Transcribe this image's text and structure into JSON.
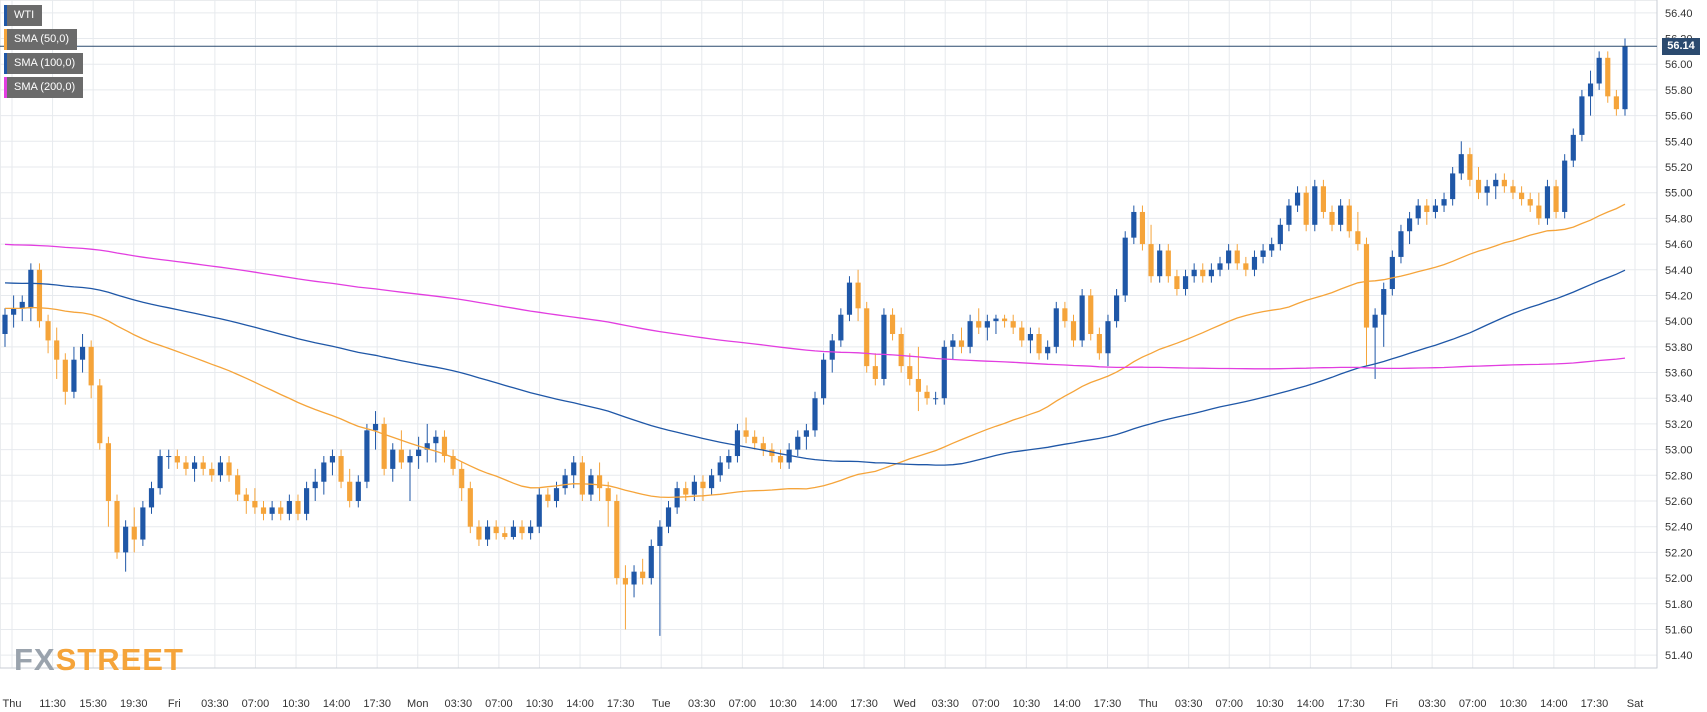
{
  "legend": [
    {
      "label": "WTI",
      "color": "#1f57a7"
    },
    {
      "label": "SMA (50,0)",
      "color": "#f5a43a"
    },
    {
      "label": "SMA (100,0)",
      "color": "#1f57a7"
    },
    {
      "label": "SMA (200,0)",
      "color": "#e23ee0"
    }
  ],
  "logo": {
    "fx": "FX",
    "street": "STREET"
  },
  "price_tag": "56.14",
  "colors": {
    "up": "#1f57a7",
    "down": "#f5a43a",
    "sma50": "#f5a43a",
    "sma100": "#1f57a7",
    "sma200": "#e23ee0",
    "grid": "#e7eaee",
    "last_line": "#2b4a6f"
  },
  "chart_data": {
    "type": "candlestick",
    "title": "",
    "symbol": "WTI",
    "ylim": [
      51.3,
      56.5
    ],
    "y_ticks": [
      "51.40",
      "51.60",
      "51.80",
      "52.00",
      "52.20",
      "52.40",
      "52.60",
      "52.80",
      "53.00",
      "53.20",
      "53.40",
      "53.60",
      "53.80",
      "54.00",
      "54.20",
      "54.40",
      "54.60",
      "54.80",
      "55.00",
      "55.20",
      "55.40",
      "55.60",
      "55.80",
      "56.00",
      "56.20",
      "56.40"
    ],
    "x_ticks": [
      "Thu",
      "11:30",
      "15:30",
      "19:30",
      "Fri",
      "03:30",
      "07:00",
      "10:30",
      "14:00",
      "17:30",
      "Mon",
      "03:30",
      "07:00",
      "10:30",
      "14:00",
      "17:30",
      "Tue",
      "03:30",
      "07:00",
      "10:30",
      "14:00",
      "17:30",
      "Wed",
      "03:30",
      "07:00",
      "10:30",
      "14:00",
      "17:30",
      "Thu",
      "03:30",
      "07:00",
      "10:30",
      "14:00",
      "17:30",
      "Fri",
      "03:30",
      "07:00",
      "10:30",
      "14:00",
      "17:30",
      "Sat"
    ],
    "last_price": 56.14,
    "ohlc": [
      [
        53.9,
        54.1,
        53.8,
        54.05
      ],
      [
        54.05,
        54.2,
        53.95,
        54.1
      ],
      [
        54.1,
        54.2,
        54.0,
        54.15
      ],
      [
        54.1,
        54.45,
        54.0,
        54.4
      ],
      [
        54.4,
        54.45,
        53.95,
        54.0
      ],
      [
        54.0,
        54.05,
        53.75,
        53.85
      ],
      [
        53.85,
        53.95,
        53.55,
        53.7
      ],
      [
        53.7,
        53.75,
        53.35,
        53.45
      ],
      [
        53.45,
        53.8,
        53.4,
        53.7
      ],
      [
        53.7,
        53.9,
        53.6,
        53.8
      ],
      [
        53.8,
        53.85,
        53.4,
        53.5
      ],
      [
        53.5,
        53.55,
        53.0,
        53.05
      ],
      [
        53.05,
        53.1,
        52.4,
        52.6
      ],
      [
        52.6,
        52.65,
        52.15,
        52.2
      ],
      [
        52.2,
        52.45,
        52.05,
        52.4
      ],
      [
        52.4,
        52.55,
        52.2,
        52.3
      ],
      [
        52.3,
        52.6,
        52.25,
        52.55
      ],
      [
        52.55,
        52.75,
        52.5,
        52.7
      ],
      [
        52.7,
        53.0,
        52.65,
        52.95
      ],
      [
        52.95,
        53.0,
        52.85,
        52.95
      ],
      [
        52.95,
        53.0,
        52.85,
        52.9
      ],
      [
        52.9,
        52.95,
        52.8,
        52.85
      ],
      [
        52.85,
        52.95,
        52.75,
        52.9
      ],
      [
        52.9,
        52.95,
        52.8,
        52.85
      ],
      [
        52.85,
        52.9,
        52.75,
        52.8
      ],
      [
        52.8,
        52.95,
        52.75,
        52.9
      ],
      [
        52.9,
        52.95,
        52.75,
        52.8
      ],
      [
        52.8,
        52.85,
        52.6,
        52.65
      ],
      [
        52.65,
        52.7,
        52.5,
        52.6
      ],
      [
        52.6,
        52.7,
        52.5,
        52.55
      ],
      [
        52.55,
        52.6,
        52.45,
        52.5
      ],
      [
        52.5,
        52.6,
        52.45,
        52.55
      ],
      [
        52.55,
        52.6,
        52.45,
        52.5
      ],
      [
        52.5,
        52.65,
        52.45,
        52.6
      ],
      [
        52.6,
        52.65,
        52.45,
        52.5
      ],
      [
        52.5,
        52.75,
        52.45,
        52.7
      ],
      [
        52.7,
        52.85,
        52.6,
        52.75
      ],
      [
        52.75,
        52.95,
        52.65,
        52.9
      ],
      [
        52.9,
        53.0,
        52.8,
        52.95
      ],
      [
        52.95,
        53.0,
        52.7,
        52.75
      ],
      [
        52.75,
        52.85,
        52.55,
        52.6
      ],
      [
        52.6,
        52.8,
        52.55,
        52.75
      ],
      [
        52.75,
        53.2,
        52.7,
        53.15
      ],
      [
        53.15,
        53.3,
        53.0,
        53.2
      ],
      [
        53.2,
        53.25,
        52.8,
        52.85
      ],
      [
        52.85,
        53.05,
        52.75,
        53.0
      ],
      [
        53.0,
        53.15,
        52.85,
        52.9
      ],
      [
        52.9,
        53.0,
        52.6,
        52.95
      ],
      [
        52.95,
        53.1,
        52.85,
        53.0
      ],
      [
        53.0,
        53.2,
        52.9,
        53.05
      ],
      [
        53.05,
        53.15,
        52.9,
        53.1
      ],
      [
        53.1,
        53.15,
        52.9,
        52.95
      ],
      [
        52.95,
        53.0,
        52.8,
        52.85
      ],
      [
        52.85,
        52.9,
        52.6,
        52.7
      ],
      [
        52.7,
        52.75,
        52.35,
        52.4
      ],
      [
        52.4,
        52.45,
        52.25,
        52.3
      ],
      [
        52.3,
        52.45,
        52.25,
        52.4
      ],
      [
        52.4,
        52.45,
        52.3,
        52.35
      ],
      [
        52.35,
        52.4,
        52.3,
        52.32
      ],
      [
        52.32,
        52.45,
        52.3,
        52.4
      ],
      [
        52.4,
        52.45,
        52.3,
        52.35
      ],
      [
        52.35,
        52.45,
        52.3,
        52.4
      ],
      [
        52.4,
        52.7,
        52.35,
        52.65
      ],
      [
        52.65,
        52.7,
        52.55,
        52.6
      ],
      [
        52.6,
        52.75,
        52.55,
        52.7
      ],
      [
        52.7,
        52.85,
        52.65,
        52.8
      ],
      [
        52.8,
        52.95,
        52.7,
        52.9
      ],
      [
        52.9,
        52.95,
        52.6,
        52.65
      ],
      [
        52.65,
        52.85,
        52.6,
        52.8
      ],
      [
        52.8,
        52.9,
        52.6,
        52.7
      ],
      [
        52.7,
        52.75,
        52.4,
        52.6
      ],
      [
        52.6,
        52.65,
        51.95,
        52.0
      ],
      [
        52.0,
        52.1,
        51.6,
        51.95
      ],
      [
        51.95,
        52.1,
        51.85,
        52.05
      ],
      [
        52.05,
        52.15,
        51.95,
        52.0
      ],
      [
        52.0,
        52.3,
        51.95,
        52.25
      ],
      [
        52.25,
        52.45,
        51.55,
        52.4
      ],
      [
        52.4,
        52.6,
        52.35,
        52.55
      ],
      [
        52.55,
        52.75,
        52.5,
        52.7
      ],
      [
        52.7,
        52.75,
        52.6,
        52.65
      ],
      [
        52.65,
        52.8,
        52.6,
        52.75
      ],
      [
        52.75,
        52.8,
        52.6,
        52.7
      ],
      [
        52.7,
        52.85,
        52.65,
        52.8
      ],
      [
        52.8,
        52.95,
        52.75,
        52.9
      ],
      [
        52.9,
        53.0,
        52.85,
        52.95
      ],
      [
        52.95,
        53.2,
        52.9,
        53.15
      ],
      [
        53.15,
        53.25,
        53.05,
        53.1
      ],
      [
        53.1,
        53.15,
        53.0,
        53.05
      ],
      [
        53.05,
        53.1,
        52.95,
        53.0
      ],
      [
        53.0,
        53.05,
        52.9,
        52.95
      ],
      [
        52.95,
        53.0,
        52.85,
        52.9
      ],
      [
        52.9,
        53.05,
        52.85,
        53.0
      ],
      [
        53.0,
        53.15,
        52.95,
        53.1
      ],
      [
        53.1,
        53.2,
        53.0,
        53.15
      ],
      [
        53.15,
        53.45,
        53.1,
        53.4
      ],
      [
        53.4,
        53.75,
        53.35,
        53.7
      ],
      [
        53.7,
        53.9,
        53.6,
        53.85
      ],
      [
        53.85,
        54.1,
        53.8,
        54.05
      ],
      [
        54.05,
        54.35,
        54.0,
        54.3
      ],
      [
        54.3,
        54.4,
        54.0,
        54.1
      ],
      [
        54.1,
        54.15,
        53.6,
        53.65
      ],
      [
        53.65,
        53.75,
        53.5,
        53.55
      ],
      [
        53.55,
        54.1,
        53.5,
        54.05
      ],
      [
        54.05,
        54.1,
        53.85,
        53.9
      ],
      [
        53.9,
        53.95,
        53.6,
        53.65
      ],
      [
        53.65,
        53.75,
        53.5,
        53.55
      ],
      [
        53.55,
        53.8,
        53.3,
        53.45
      ],
      [
        53.45,
        53.5,
        53.35,
        53.4
      ],
      [
        53.4,
        53.45,
        53.35,
        53.4
      ],
      [
        53.4,
        53.85,
        53.35,
        53.8
      ],
      [
        53.8,
        53.9,
        53.7,
        53.85
      ],
      [
        53.85,
        53.95,
        53.75,
        53.8
      ],
      [
        53.8,
        54.05,
        53.75,
        54.0
      ],
      [
        54.0,
        54.1,
        53.9,
        53.95
      ],
      [
        53.95,
        54.05,
        53.85,
        54.0
      ],
      [
        54.0,
        54.05,
        53.9,
        54.02
      ],
      [
        54.02,
        54.05,
        53.95,
        54.0
      ],
      [
        54.0,
        54.05,
        53.9,
        53.95
      ],
      [
        53.95,
        54.0,
        53.8,
        53.85
      ],
      [
        53.85,
        53.95,
        53.75,
        53.9
      ],
      [
        53.9,
        53.95,
        53.7,
        53.75
      ],
      [
        53.75,
        53.85,
        53.7,
        53.8
      ],
      [
        53.8,
        54.15,
        53.75,
        54.1
      ],
      [
        54.1,
        54.15,
        53.95,
        54.0
      ],
      [
        54.0,
        54.05,
        53.8,
        53.85
      ],
      [
        53.85,
        54.25,
        53.8,
        54.2
      ],
      [
        54.2,
        54.25,
        53.85,
        53.9
      ],
      [
        53.9,
        53.95,
        53.7,
        53.75
      ],
      [
        53.75,
        54.05,
        53.65,
        54.0
      ],
      [
        54.0,
        54.25,
        53.95,
        54.2
      ],
      [
        54.2,
        54.7,
        54.15,
        54.65
      ],
      [
        54.65,
        54.9,
        54.6,
        54.85
      ],
      [
        54.85,
        54.9,
        54.55,
        54.6
      ],
      [
        54.6,
        54.75,
        54.3,
        54.35
      ],
      [
        54.35,
        54.6,
        54.3,
        54.55
      ],
      [
        54.55,
        54.6,
        54.3,
        54.35
      ],
      [
        54.35,
        54.4,
        54.2,
        54.25
      ],
      [
        54.25,
        54.4,
        54.2,
        54.35
      ],
      [
        54.35,
        54.45,
        54.3,
        54.4
      ],
      [
        54.4,
        54.45,
        54.3,
        54.35
      ],
      [
        54.35,
        54.45,
        54.3,
        54.4
      ],
      [
        54.4,
        54.5,
        54.35,
        54.45
      ],
      [
        54.45,
        54.6,
        54.4,
        54.55
      ],
      [
        54.55,
        54.6,
        54.4,
        54.45
      ],
      [
        54.45,
        54.5,
        54.35,
        54.4
      ],
      [
        54.4,
        54.55,
        54.35,
        54.5
      ],
      [
        54.5,
        54.6,
        54.45,
        54.55
      ],
      [
        54.55,
        54.65,
        54.5,
        54.6
      ],
      [
        54.6,
        54.8,
        54.55,
        54.75
      ],
      [
        54.75,
        54.95,
        54.7,
        54.9
      ],
      [
        54.9,
        55.05,
        54.85,
        55.0
      ],
      [
        55.0,
        55.05,
        54.7,
        54.75
      ],
      [
        54.75,
        55.1,
        54.7,
        55.05
      ],
      [
        55.05,
        55.1,
        54.8,
        54.85
      ],
      [
        54.85,
        54.9,
        54.7,
        54.75
      ],
      [
        54.75,
        54.95,
        54.7,
        54.9
      ],
      [
        54.9,
        54.95,
        54.65,
        54.7
      ],
      [
        54.7,
        54.85,
        54.55,
        54.6
      ],
      [
        54.6,
        54.65,
        53.65,
        53.95
      ],
      [
        53.95,
        54.1,
        53.55,
        54.05
      ],
      [
        54.05,
        54.3,
        53.8,
        54.25
      ],
      [
        54.25,
        54.55,
        54.2,
        54.5
      ],
      [
        54.5,
        54.75,
        54.45,
        54.7
      ],
      [
        54.7,
        54.85,
        54.6,
        54.8
      ],
      [
        54.8,
        54.95,
        54.75,
        54.9
      ],
      [
        54.9,
        54.95,
        54.75,
        54.85
      ],
      [
        54.85,
        54.95,
        54.8,
        54.9
      ],
      [
        54.9,
        55.0,
        54.85,
        54.95
      ],
      [
        54.95,
        55.2,
        54.9,
        55.15
      ],
      [
        55.15,
        55.4,
        55.1,
        55.3
      ],
      [
        55.3,
        55.35,
        55.05,
        55.1
      ],
      [
        55.1,
        55.2,
        54.95,
        55.0
      ],
      [
        55.0,
        55.1,
        54.9,
        55.05
      ],
      [
        55.05,
        55.15,
        54.95,
        55.1
      ],
      [
        55.1,
        55.15,
        55.0,
        55.05
      ],
      [
        55.05,
        55.1,
        54.95,
        55.0
      ],
      [
        55.0,
        55.05,
        54.9,
        54.95
      ],
      [
        54.95,
        55.0,
        54.85,
        54.9
      ],
      [
        54.9,
        55.0,
        54.75,
        54.8
      ],
      [
        54.8,
        55.1,
        54.75,
        55.05
      ],
      [
        55.05,
        55.1,
        54.8,
        54.85
      ],
      [
        54.85,
        55.3,
        54.8,
        55.25
      ],
      [
        55.25,
        55.5,
        55.2,
        55.45
      ],
      [
        55.45,
        55.8,
        55.4,
        55.75
      ],
      [
        55.75,
        55.95,
        55.6,
        55.85
      ],
      [
        55.85,
        56.1,
        55.8,
        56.05
      ],
      [
        56.05,
        56.1,
        55.7,
        55.75
      ],
      [
        55.75,
        55.8,
        55.6,
        55.65
      ],
      [
        55.65,
        56.2,
        55.6,
        56.14
      ]
    ]
  }
}
